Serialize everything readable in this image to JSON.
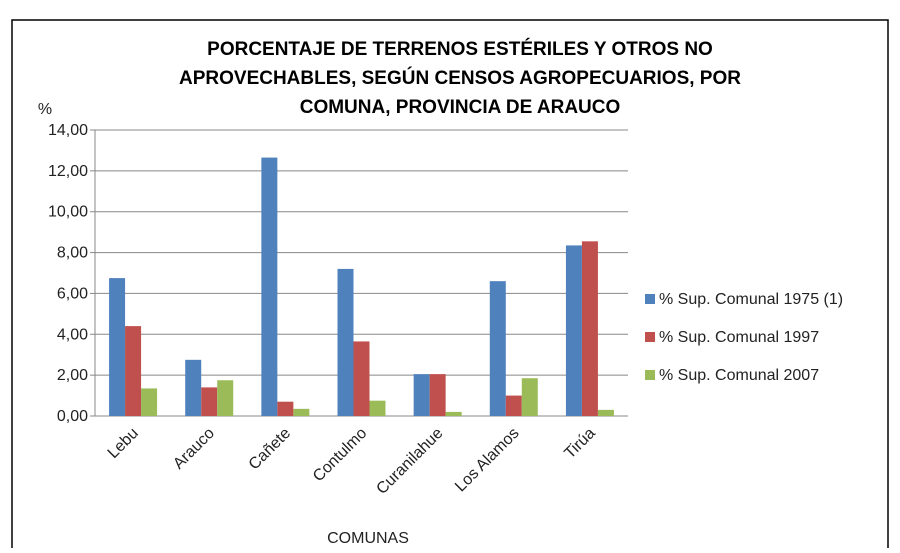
{
  "chart_data": {
    "type": "bar",
    "title": [
      "PORCENTAJE DE TERRENOS ESTÉRILES Y OTROS NO",
      "APROVECHABLES, SEGÚN CENSOS AGROPECUARIOS, POR",
      "COMUNA, PROVINCIA DE ARAUCO"
    ],
    "y_label": "%",
    "x_label": "COMUNAS",
    "categories": [
      "Lebu",
      "Arauco",
      "Cañete",
      "Contulmo",
      "Curanilahue",
      "Los Alamos",
      "Tirúa"
    ],
    "series": [
      {
        "name": "% Sup. Comunal 1975 (1)",
        "color": "#4f81bd",
        "values": [
          6.75,
          2.75,
          12.65,
          7.2,
          2.05,
          6.6,
          8.35
        ]
      },
      {
        "name": "% Sup. Comunal 1997",
        "color": "#c0504d",
        "values": [
          4.4,
          1.4,
          0.7,
          3.65,
          2.05,
          1.0,
          8.55
        ]
      },
      {
        "name": "% Sup. Comunal 2007",
        "color": "#9bbb59",
        "values": [
          1.35,
          1.75,
          0.35,
          0.75,
          0.2,
          1.85,
          0.3
        ]
      }
    ],
    "ylim": [
      0,
      14
    ],
    "yticks": [
      {
        "value": 0,
        "label": "0,00"
      },
      {
        "value": 2,
        "label": "2,00"
      },
      {
        "value": 4,
        "label": "4,00"
      },
      {
        "value": 6,
        "label": "6,00"
      },
      {
        "value": 8,
        "label": "8,00"
      },
      {
        "value": 10,
        "label": "10,00"
      },
      {
        "value": 12,
        "label": "12,00"
      },
      {
        "value": 14,
        "label": "14,00"
      }
    ],
    "grid": true,
    "legend": "right"
  }
}
